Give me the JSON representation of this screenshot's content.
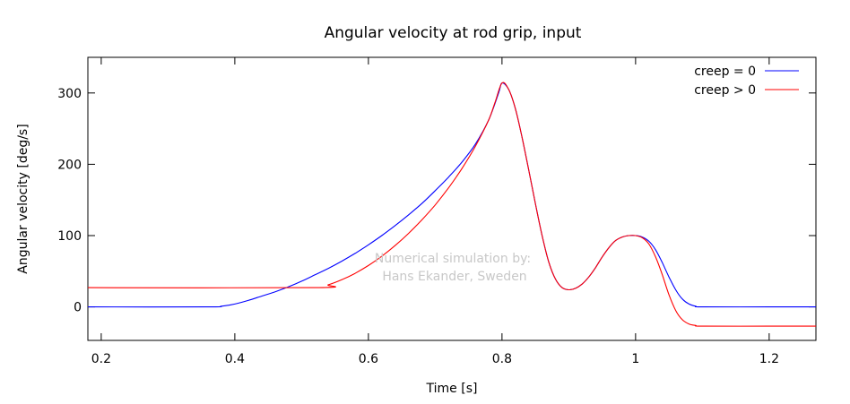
{
  "chart_data": {
    "type": "line",
    "title": "Angular velocity at rod grip, input",
    "xlabel": "Time [s]",
    "ylabel": "Angular velocity [deg/s]",
    "xlim": [
      0.18,
      1.27
    ],
    "ylim": [
      -47,
      350
    ],
    "xticks": [
      0.2,
      0.4,
      0.6,
      0.8,
      1,
      1.2
    ],
    "yticks": [
      0,
      100,
      200,
      300
    ],
    "grid": false,
    "legend_position": "top-right",
    "annotation": [
      "Numerical simulation by:",
      "Hans Ekander, Sweden"
    ],
    "series": [
      {
        "name": "creep = 0",
        "color": "#0000ff",
        "x": [
          0.18,
          0.36,
          0.38,
          0.4,
          0.42,
          0.44,
          0.46,
          0.48,
          0.5,
          0.52,
          0.54,
          0.56,
          0.58,
          0.6,
          0.62,
          0.64,
          0.66,
          0.68,
          0.7,
          0.72,
          0.74,
          0.76,
          0.78,
          0.795,
          0.8,
          0.81,
          0.82,
          0.83,
          0.84,
          0.85,
          0.86,
          0.87,
          0.88,
          0.89,
          0.9,
          0.91,
          0.92,
          0.93,
          0.94,
          0.95,
          0.96,
          0.97,
          0.98,
          0.99,
          1.0,
          1.01,
          1.02,
          1.03,
          1.04,
          1.05,
          1.06,
          1.07,
          1.08,
          1.09,
          1.1,
          1.2,
          1.27
        ],
        "y": [
          0,
          0,
          1,
          4,
          9,
          15,
          21,
          28,
          36,
          45,
          54,
          64,
          75,
          87,
          100,
          114,
          129,
          145,
          163,
          182,
          203,
          228,
          262,
          300,
          314,
          305,
          278,
          238,
          192,
          145,
          100,
          63,
          39,
          27,
          24,
          26,
          32,
          42,
          55,
          70,
          83,
          93,
          98,
          100,
          100,
          98,
          92,
          80,
          62,
          42,
          24,
          11,
          4,
          1,
          0,
          0,
          0
        ]
      },
      {
        "name": "creep > 0",
        "color": "#ff0000",
        "x": [
          0.18,
          0.52,
          0.54,
          0.56,
          0.58,
          0.6,
          0.62,
          0.64,
          0.66,
          0.68,
          0.7,
          0.72,
          0.74,
          0.76,
          0.78,
          0.79,
          0.8,
          0.81,
          0.82,
          0.83,
          0.84,
          0.85,
          0.86,
          0.87,
          0.88,
          0.89,
          0.9,
          0.91,
          0.92,
          0.93,
          0.94,
          0.95,
          0.96,
          0.97,
          0.98,
          0.99,
          1.0,
          1.01,
          1.02,
          1.03,
          1.04,
          1.05,
          1.06,
          1.07,
          1.08,
          1.09,
          1.1,
          1.2,
          1.27
        ],
        "y": [
          27,
          27,
          31,
          38,
          47,
          58,
          71,
          86,
          103,
          122,
          143,
          167,
          194,
          225,
          262,
          288,
          314,
          305,
          278,
          238,
          192,
          145,
          100,
          63,
          39,
          27,
          24,
          26,
          32,
          42,
          55,
          70,
          83,
          93,
          98,
          100,
          100,
          97,
          88,
          70,
          45,
          17,
          -5,
          -18,
          -24,
          -26,
          -27,
          -27,
          -27
        ]
      }
    ]
  }
}
